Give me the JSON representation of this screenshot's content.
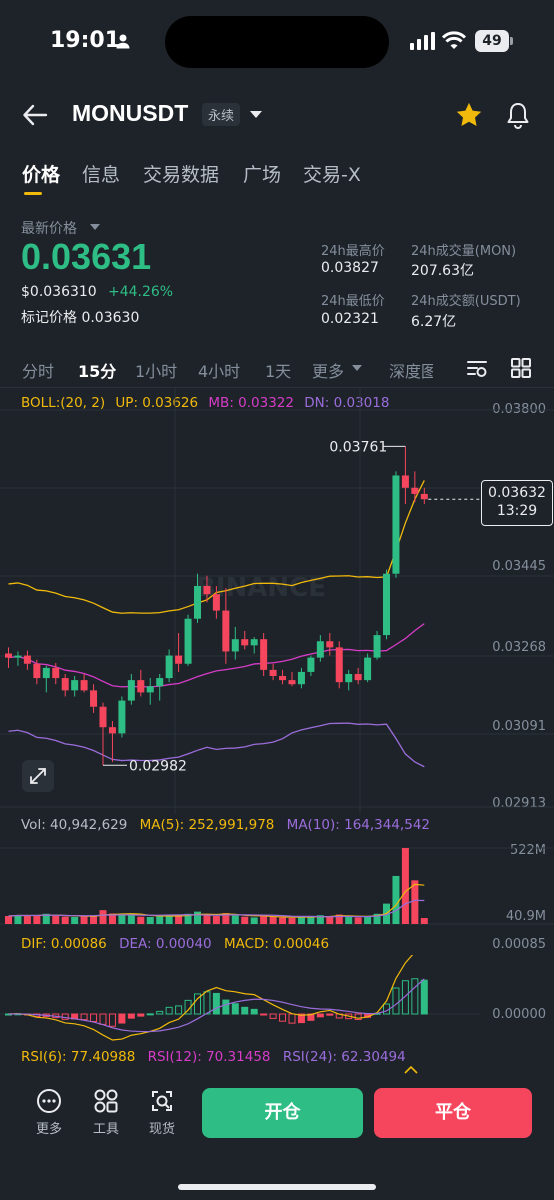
{
  "status": {
    "time": "19:01",
    "battery": "49"
  },
  "header": {
    "symbol": "MONUSDT",
    "contract_type": "永续"
  },
  "tabs": [
    "价格",
    "信息",
    "交易数据",
    "广场",
    "交易-X"
  ],
  "ticker": {
    "latest_price_label": "最新价格",
    "last_price": "0.03631",
    "usd_price": "$0.036310",
    "change_pct": "+44.26%",
    "mark_price_label": "标记价格",
    "mark_price": "0.03630",
    "high_24h_label": "24h最高价",
    "high_24h": "0.03827",
    "low_24h_label": "24h最低价",
    "low_24h": "0.02321",
    "vol_mon_label": "24h成交量(MON)",
    "vol_mon": "207.63亿",
    "vol_usdt_label": "24h成交额(USDT)",
    "vol_usdt": "6.27亿"
  },
  "intervals": [
    "分时",
    "15分",
    "1小时",
    "4小时",
    "1天",
    "更多",
    "深度图"
  ],
  "boll": {
    "label": "BOLL:(20, 2)",
    "up": "UP: 0.03626",
    "mb": "MB: 0.03322",
    "dn": "DN: 0.03018"
  },
  "price_axis": [
    "0.03800",
    "0.03445",
    "0.03268",
    "0.03091",
    "0.02913"
  ],
  "chart_annotations": {
    "high": "0.03761",
    "low": "0.02982",
    "current_price": "0.03632",
    "countdown": "13:29",
    "watermark": "BINANCE"
  },
  "volume": {
    "vol": "Vol: 40,942,629",
    "ma5": "MA(5): 252,991,978",
    "ma10": "MA(10): 164,344,542",
    "axis_top": "522M",
    "axis_bottom": "40.9M"
  },
  "macd": {
    "dif": "DIF: 0.00086",
    "dea": "DEA: 0.00040",
    "macd": "MACD: 0.00046",
    "axis_top": "0.00085",
    "axis_bottom": "0.00000"
  },
  "rsi": {
    "rsi6": "RSI(6): 77.40988",
    "rsi12": "RSI(12): 70.31458",
    "rsi24": "RSI(24): 62.30494"
  },
  "bottom": {
    "more": "更多",
    "tools": "工具",
    "spot": "现货",
    "open": "开仓",
    "close": "平仓"
  },
  "colors": {
    "up": "#2ebd85",
    "down": "#f6465d",
    "accent": "#f0b90b",
    "boll_up": "#f0b90b",
    "boll_mb": "#d63cc8",
    "boll_dn": "#9b6ddb"
  },
  "chart_data": {
    "type": "candlestick",
    "interval": "15分",
    "ylim": [
      0.0288,
      0.0385
    ],
    "candles": [
      [
        0.03255,
        0.0327,
        0.0322,
        0.03245
      ],
      [
        0.03245,
        0.0326,
        0.03225,
        0.0325
      ],
      [
        0.0325,
        0.03262,
        0.03215,
        0.0323
      ],
      [
        0.0323,
        0.0324,
        0.0318,
        0.03195
      ],
      [
        0.03195,
        0.03225,
        0.0316,
        0.0322
      ],
      [
        0.0322,
        0.03232,
        0.0318,
        0.03195
      ],
      [
        0.03195,
        0.03205,
        0.0315,
        0.03165
      ],
      [
        0.03165,
        0.032,
        0.0315,
        0.0319
      ],
      [
        0.0319,
        0.03205,
        0.0316,
        0.03165
      ],
      [
        0.03165,
        0.0318,
        0.0311,
        0.03125
      ],
      [
        0.03125,
        0.03135,
        0.02982,
        0.03075
      ],
      [
        0.03075,
        0.0309,
        0.0299,
        0.0306
      ],
      [
        0.0306,
        0.0315,
        0.0305,
        0.0314
      ],
      [
        0.0314,
        0.03205,
        0.0313,
        0.0319
      ],
      [
        0.0319,
        0.03215,
        0.0315,
        0.0316
      ],
      [
        0.0316,
        0.03195,
        0.0313,
        0.03175
      ],
      [
        0.03175,
        0.03205,
        0.0314,
        0.03195
      ],
      [
        0.03195,
        0.03265,
        0.03185,
        0.0325
      ],
      [
        0.0325,
        0.03305,
        0.0321,
        0.0323
      ],
      [
        0.0323,
        0.0335,
        0.03225,
        0.0334
      ],
      [
        0.0334,
        0.0345,
        0.0333,
        0.0342
      ],
      [
        0.0342,
        0.03445,
        0.0338,
        0.034
      ],
      [
        0.034,
        0.0342,
        0.0334,
        0.0336
      ],
      [
        0.0336,
        0.03415,
        0.0323,
        0.0326
      ],
      [
        0.0326,
        0.0332,
        0.0324,
        0.0329
      ],
      [
        0.0329,
        0.0331,
        0.03265,
        0.03275
      ],
      [
        0.03275,
        0.03295,
        0.03255,
        0.0329
      ],
      [
        0.0329,
        0.03305,
        0.032,
        0.03215
      ],
      [
        0.03215,
        0.0323,
        0.0319,
        0.032
      ],
      [
        0.032,
        0.03215,
        0.0318,
        0.0319
      ],
      [
        0.0319,
        0.0321,
        0.03175,
        0.0318
      ],
      [
        0.0318,
        0.0322,
        0.0317,
        0.0321
      ],
      [
        0.0321,
        0.0325,
        0.032,
        0.03245
      ],
      [
        0.03245,
        0.033,
        0.03235,
        0.03285
      ],
      [
        0.03285,
        0.03305,
        0.0325,
        0.0327
      ],
      [
        0.0327,
        0.03285,
        0.0317,
        0.03185
      ],
      [
        0.03185,
        0.03215,
        0.03165,
        0.03205
      ],
      [
        0.03205,
        0.0322,
        0.0318,
        0.0319
      ],
      [
        0.0319,
        0.03255,
        0.03185,
        0.03245
      ],
      [
        0.03245,
        0.0331,
        0.0324,
        0.033
      ],
      [
        0.033,
        0.0346,
        0.0329,
        0.0345
      ],
      [
        0.0345,
        0.037,
        0.0344,
        0.0369
      ],
      [
        0.0369,
        0.03761,
        0.0362,
        0.0366
      ],
      [
        0.0366,
        0.037,
        0.03625,
        0.03645
      ],
      [
        0.03645,
        0.0366,
        0.0362,
        0.03632
      ]
    ],
    "volumes_m": [
      55,
      62,
      58,
      60,
      70,
      55,
      50,
      48,
      52,
      60,
      95,
      72,
      65,
      60,
      50,
      48,
      55,
      62,
      58,
      70,
      85,
      60,
      55,
      75,
      58,
      50,
      45,
      55,
      48,
      45,
      42,
      50,
      55,
      60,
      50,
      65,
      48,
      45,
      55,
      70,
      140,
      330,
      522,
      300,
      41
    ],
    "rsi": {
      "rsi6": 77.40988,
      "rsi12": 70.31458,
      "rsi24": 62.30494
    }
  }
}
